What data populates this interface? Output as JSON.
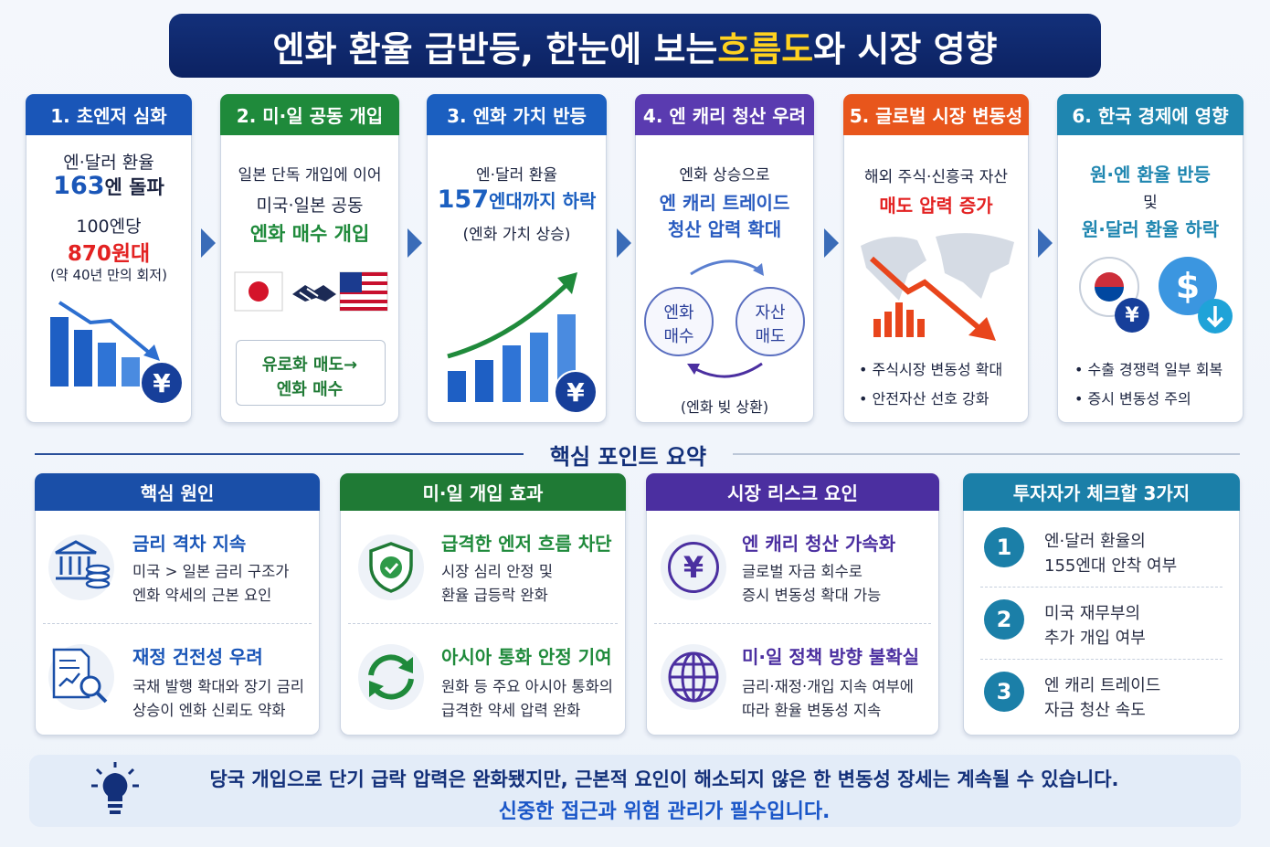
{
  "header": {
    "title_before": "엔화 환율 급반등, 한눈에 보는 ",
    "title_highlight": "흐름도",
    "title_after": "와 시장 영향"
  },
  "steps": [
    {
      "title": "1. 초엔저 심화",
      "line1": "엔·달러 환율",
      "big": "163",
      "big_after": "엔 돌파",
      "line3": "100엔당",
      "line4": "870원대",
      "line5": "(약 40년 만의 회저)",
      "icon": "¥"
    },
    {
      "title": "2. 미·일 공동 개입",
      "line1": "일본 단독 개입에 이어",
      "line2": "미국·일본 공동",
      "line3": "엔화 매수 개입",
      "box1": "유로화 매도→",
      "box2": "엔화 매수"
    },
    {
      "title": "3. 엔화 가치 반등",
      "line1": "엔·달러 환율",
      "big": "157",
      "big_after": "엔대까지 하락",
      "line3": "(엔화 가치 상승)",
      "icon": "¥"
    },
    {
      "title": "4. 엔 캐리 청산 우려",
      "line1": "엔화 상승으로",
      "line2": "엔 캐리 트레이드",
      "line3": "청산 압력 확대",
      "circle1": [
        "엔화",
        "매수"
      ],
      "circle2": [
        "자산",
        "매도"
      ],
      "note": "(엔화 빚 상환)"
    },
    {
      "title": "5. 글로벌 시장 변동성",
      "line1": "해외 주식·신흥국 자산",
      "line2": "매도 압력 증가",
      "bullets": [
        "주식시장 변동성 확대",
        "안전자산 선호 강화"
      ]
    },
    {
      "title": "6. 한국 경제에 영향",
      "line1": "원·엔 환율 반등",
      "line2": "및",
      "line3": "원·달러 환율 하락",
      "icon1": "¥",
      "icon2": "$",
      "bullets": [
        "수출 경쟁력 일부 회복",
        "증시 변동성 주의"
      ]
    }
  ],
  "summary": {
    "title": "핵심 포인트 요약",
    "cards": [
      {
        "title": "핵심 원인",
        "items": [
          {
            "title": "금리 격차 지속",
            "lines": [
              "미국 > 일본 금리 구조가",
              "엔화 약세의 근본 요인"
            ]
          },
          {
            "title": "재정 건전성 우려",
            "lines": [
              "국채 발행 확대와 장기 금리",
              "상승이 엔화 신뢰도 약화"
            ]
          }
        ]
      },
      {
        "title": "미·일 개입 효과",
        "items": [
          {
            "title": "급격한 엔저 흐름 차단",
            "lines": [
              "시장 심리 안정 및",
              "환율 급등락 완화"
            ]
          },
          {
            "title": "아시아 통화 안정 기여",
            "lines": [
              "원화 등 주요 아시아 통화의",
              "급격한 약세 압력 완화"
            ]
          }
        ]
      },
      {
        "title": "시장 리스크 요인",
        "icon": "¥",
        "items": [
          {
            "title": "엔 캐리 청산 가속화",
            "lines": [
              "글로벌 자금 회수로",
              "증시 변동성 확대 가능"
            ]
          },
          {
            "title": "미·일 정책 방향 불확실",
            "lines": [
              "금리·재정·개입 지속 여부에",
              "따라 환율 변동성 지속"
            ]
          }
        ]
      },
      {
        "title": "투자자가 체크할 3가지",
        "checks": [
          {
            "num": "1",
            "lines": [
              "엔·달러 환율의",
              "155엔대 안착 여부"
            ]
          },
          {
            "num": "2",
            "lines": [
              "미국 재무부의",
              "추가 개입 여부"
            ]
          },
          {
            "num": "3",
            "lines": [
              "엔 캐리 트레이드",
              "자금 청산 속도"
            ]
          }
        ]
      }
    ]
  },
  "footer": {
    "line1": "당국 개입으로 단기 급락 압력은 완화됐지만, 근본적 요인이 해소되지 않은 한 변동성 장세는 계속될 수 있습니다.",
    "line2": "신중한 접근과 위험 관리가 필수입니다."
  }
}
